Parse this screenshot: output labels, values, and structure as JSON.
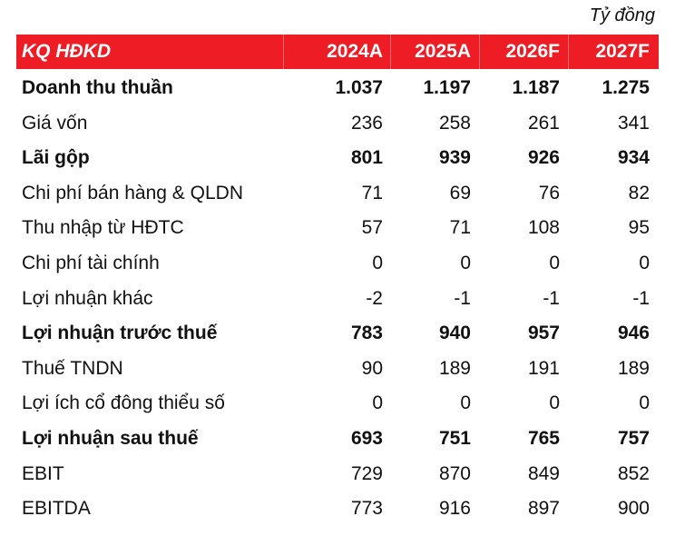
{
  "table": {
    "unit": "Tỷ đồng",
    "header": [
      "KQ HĐKD",
      "2024A",
      "2025A",
      "2026F",
      "2027F"
    ],
    "rows": [
      [
        "Doanh thu thuần",
        "1.037",
        "1.197",
        "1.187",
        "1.275"
      ],
      [
        "Giá vốn",
        "236",
        "258",
        "261",
        "341"
      ],
      [
        "Lãi gộp",
        "801",
        "939",
        "926",
        "934"
      ],
      [
        "Chi phí bán hàng & QLDN",
        "71",
        "69",
        "76",
        "82"
      ],
      [
        "Thu nhập từ HĐTC",
        "57",
        "71",
        "108",
        "95"
      ],
      [
        "Chi phí tài chính",
        "0",
        "0",
        "0",
        "0"
      ],
      [
        "Lợi nhuận khác",
        "-2",
        "-1",
        "-1",
        "-1"
      ],
      [
        "Lợi nhuận trước thuế",
        "783",
        "940",
        "957",
        "946"
      ],
      [
        "Thuế TNDN",
        "90",
        "189",
        "191",
        "189"
      ],
      [
        "Lợi ích cổ đông thiểu số",
        "0",
        "0",
        "0",
        "0"
      ],
      [
        "Lợi nhuận sau thuế",
        "693",
        "751",
        "765",
        "757"
      ],
      [
        "EBIT",
        "729",
        "870",
        "849",
        "852"
      ],
      [
        "EBITDA",
        "773",
        "916",
        "897",
        "900"
      ]
    ]
  }
}
